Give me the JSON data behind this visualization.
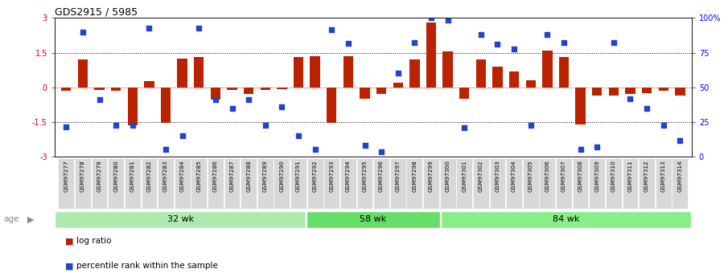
{
  "title": "GDS2915 / 5985",
  "samples": [
    "GSM97277",
    "GSM97278",
    "GSM97279",
    "GSM97280",
    "GSM97281",
    "GSM97282",
    "GSM97283",
    "GSM97284",
    "GSM97285",
    "GSM97286",
    "GSM97287",
    "GSM97288",
    "GSM97289",
    "GSM97290",
    "GSM97291",
    "GSM97292",
    "GSM97293",
    "GSM97294",
    "GSM97295",
    "GSM97296",
    "GSM97297",
    "GSM97298",
    "GSM97299",
    "GSM97300",
    "GSM97301",
    "GSM97302",
    "GSM97303",
    "GSM97304",
    "GSM97305",
    "GSM97306",
    "GSM97307",
    "GSM97308",
    "GSM97309",
    "GSM97310",
    "GSM97311",
    "GSM97312",
    "GSM97313",
    "GSM97314"
  ],
  "log_ratio": [
    -0.15,
    1.2,
    -0.1,
    -0.15,
    -1.65,
    0.28,
    -1.55,
    1.25,
    1.3,
    -0.55,
    -0.1,
    -0.3,
    -0.12,
    -0.08,
    1.3,
    1.35,
    -1.55,
    1.35,
    -0.5,
    -0.3,
    0.2,
    1.2,
    2.8,
    1.55,
    -0.5,
    1.2,
    0.9,
    0.7,
    0.3,
    1.6,
    1.3,
    -1.6,
    -0.35,
    -0.35,
    -0.3,
    -0.25,
    -0.15,
    -0.35
  ],
  "percentile": [
    -1.7,
    2.4,
    -0.55,
    -1.65,
    -1.65,
    2.55,
    -2.7,
    -2.1,
    2.55,
    -0.55,
    -0.9,
    -0.55,
    -1.65,
    -0.85,
    -2.1,
    -2.7,
    2.5,
    1.9,
    -2.5,
    -2.8,
    0.6,
    1.95,
    3.0,
    2.9,
    -1.75,
    2.3,
    1.85,
    1.65,
    -1.65,
    2.3,
    1.95,
    -2.7,
    -2.6,
    1.95,
    -0.5,
    -0.9,
    -1.65,
    -2.3
  ],
  "groups": [
    {
      "label": "32 wk",
      "start": 0,
      "end": 15,
      "color": "#aeeaae"
    },
    {
      "label": "58 wk",
      "start": 15,
      "end": 23,
      "color": "#66dd66"
    },
    {
      "label": "84 wk",
      "start": 23,
      "end": 38,
      "color": "#88ee88"
    }
  ],
  "ylim": [
    -3,
    3
  ],
  "bar_color": "#bb2200",
  "dot_color": "#2244cc",
  "background_color": "#ffffff",
  "tick_bg_color": "#d8d8d8",
  "yticks_left": [
    -3,
    -1.5,
    0,
    1.5,
    3
  ],
  "ytick_labels_left": [
    "-3",
    "-1.5",
    "0",
    "1.5",
    "3"
  ],
  "ytick_labels_right": [
    "0",
    "25",
    "50",
    "75",
    "100%"
  ]
}
